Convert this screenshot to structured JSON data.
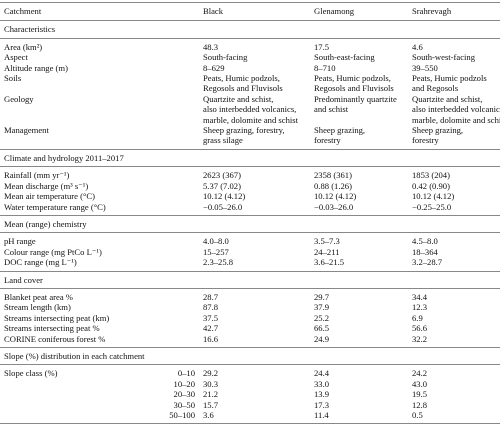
{
  "header": [
    "Catchment",
    "Black",
    "Glenamong",
    "Srahrevagh"
  ],
  "sections": [
    {
      "title": "Characteristics",
      "rows": [
        [
          "Area (km²)",
          "48.3",
          "17.5",
          "4.6"
        ],
        [
          "Aspect",
          "South-facing",
          "South-east-facing",
          "South-west-facing"
        ],
        [
          "Altitude range (m)",
          "8–629",
          "8–710",
          "39–550"
        ],
        [
          "Soils",
          [
            "Peats, Humic podzols,",
            "Regosols and Fluvisols"
          ],
          [
            "Peats, Humic podzols,",
            "Regosols and Fluvisols"
          ],
          [
            "Peats, Humic podzols",
            "and Regosols"
          ]
        ],
        [
          "Geology",
          [
            "Quartzite and schist,",
            "also interbedded volcanics,",
            "marble, dolomite and schist"
          ],
          [
            "Predominantly quartzite",
            "and schist"
          ],
          [
            "Quartzite and schist,",
            "also interbedded volcanics,",
            "marble, dolomite and schist"
          ]
        ],
        [
          "Management",
          [
            "Sheep grazing, forestry,",
            "grass silage"
          ],
          [
            "Sheep grazing,",
            "forestry"
          ],
          [
            "Sheep grazing,",
            "forestry"
          ]
        ]
      ]
    },
    {
      "title": "Climate and hydrology 2011–2017",
      "rows": [
        [
          "Rainfall (mm yr⁻¹)",
          "2623 (367)",
          "2358 (361)",
          "1853 (204)"
        ],
        [
          "Mean discharge (m³ s⁻¹)",
          "5.37 (7.02)",
          "0.88 (1.26)",
          "0.42 (0.90)"
        ],
        [
          "Mean air temperature (°C)",
          "10.12 (4.12)",
          "10.12 (4.12)",
          "10.12 (4.12)"
        ],
        [
          "Water temperature range (°C)",
          "−0.05–26.0",
          "−0.03–26.0",
          "−0.25–25.0"
        ]
      ]
    },
    {
      "title": "Mean (range) chemistry",
      "rows": [
        [
          "pH range",
          "4.0–8.0",
          "3.5–7.3",
          "4.5–8.0"
        ],
        [
          "Colour range (mg PtCo L⁻¹)",
          "15–257",
          "24–211",
          "18–364"
        ],
        [
          "DOC range (mg L⁻¹)",
          "2.3–25.8",
          "3.6–21.5",
          "3.2–28.7"
        ]
      ]
    },
    {
      "title": "Land cover",
      "rows": [
        [
          "Blanket peat area %",
          "28.7",
          "29.7",
          "34.4"
        ],
        [
          "Stream length (km)",
          "87.8",
          "37.9",
          "12.3"
        ],
        [
          "Streams intersecting peat (km)",
          "37.5",
          "25.2",
          "6.9"
        ],
        [
          "Streams intersecting peat %",
          "42.7",
          "66.5",
          "56.6"
        ],
        [
          "CORINE coniferous forest %",
          "16.6",
          "24.9",
          "32.2"
        ]
      ]
    },
    {
      "title": "Slope (%) distribution in each catchment",
      "rows": [
        [
          "Slope class (%)",
          "0–10",
          "29.2",
          "24.4",
          "24.2"
        ],
        [
          null,
          "10–20",
          "30.3",
          "33.0",
          "43.0"
        ],
        [
          null,
          "20–30",
          "21.2",
          "13.9",
          "19.5"
        ],
        [
          null,
          "30–50",
          "15.7",
          "17.3",
          "12.8"
        ],
        [
          null,
          "50–100",
          "3.6",
          "11.4",
          "0.5"
        ]
      ]
    }
  ]
}
